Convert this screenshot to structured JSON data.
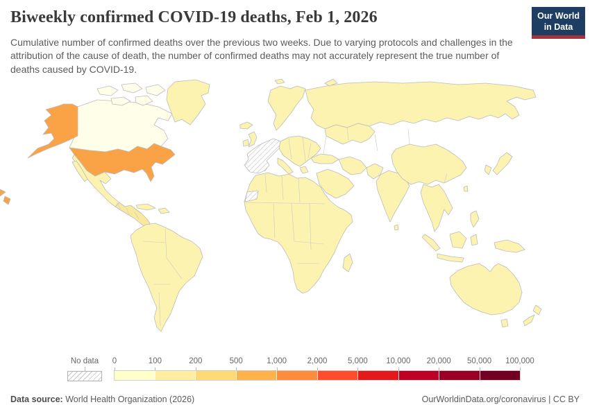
{
  "header": {
    "title": "Biweekly confirmed COVID-19 deaths, Feb 1, 2026",
    "subtitle": "Cumulative number of confirmed deaths over the previous two weeks. Due to varying protocols and challenges in the attribution of the cause of death, the number of confirmed deaths may not accurately represent the true number of deaths caused by COVID-19.",
    "logo": {
      "line1": "Our World",
      "line2": "in Data",
      "bg": "#1d3d63",
      "stripe": "#a2343a"
    }
  },
  "legend": {
    "no_data_label": "No data",
    "ticks": [
      "0",
      "100",
      "200",
      "500",
      "1,000",
      "2,000",
      "5,000",
      "10,000",
      "20,000",
      "50,000",
      "100,000"
    ],
    "bucket_colors": [
      "#ffffcc",
      "#ffeda0",
      "#fed976",
      "#feb24c",
      "#fd8d3c",
      "#fc4e2a",
      "#e31a1c",
      "#bd0026",
      "#990024",
      "#730023"
    ]
  },
  "map": {
    "fills": {
      "default": "#fbf3af",
      "light": "#fffee9",
      "variant": "#f8e99d",
      "usa": "#f9a246",
      "no_data": "hatch"
    },
    "stroke_color": "#bcbcbc"
  },
  "footer": {
    "source_label": "Data source:",
    "source_text": " World Health Organization (2026)",
    "right_text": "OurWorldinData.org/coronavirus | CC BY"
  },
  "chart_data": {
    "type": "choropleth_map",
    "title": "Biweekly confirmed COVID-19 deaths, Feb 1, 2026",
    "date": "Feb 1, 2026",
    "legend_position": "bottom",
    "scale_type": "discrete, quasi-logarithmic",
    "scale_ticks": [
      0,
      100,
      200,
      500,
      1000,
      2000,
      5000,
      10000,
      20000,
      50000,
      100000
    ],
    "scale_colors": [
      "#ffffcc",
      "#ffeda0",
      "#fed976",
      "#feb24c",
      "#fd8d3c",
      "#fc4e2a",
      "#e31a1c",
      "#bd0026",
      "#990024",
      "#730023"
    ],
    "no_data_style": "gray diagonal hatching",
    "observations": [
      {
        "region": "United States (incl. Alaska)",
        "bucket": "500–2,000 deaths",
        "fill": "#f9a246"
      },
      {
        "region": "Canada",
        "bucket": "0–100 deaths (lightest shade)",
        "fill": "#fffee9"
      },
      {
        "region": "Most other countries (Latin America, Africa, Asia, Oceania, Eastern Europe)",
        "bucket": "0–200 deaths (pale yellow)",
        "fill": "#fbf3af"
      },
      {
        "region": "Western Europe block (France, Spain, Portugal, Benelux, Germany)",
        "bucket": "No data",
        "fill": "hatched"
      },
      {
        "region": "Western Sahara",
        "bucket": "No data",
        "fill": "hatched"
      }
    ]
  }
}
